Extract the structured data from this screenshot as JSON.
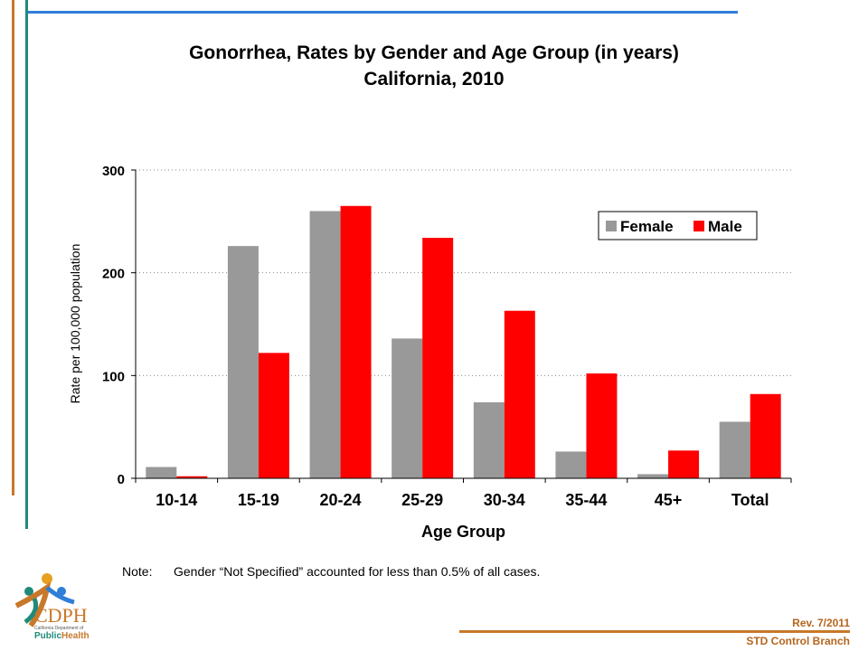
{
  "slide": {
    "title_line1": "Gonorrhea, Rates by Gender and Age Group (in years)",
    "title_line2": "California, 2010",
    "note_label": "Note:",
    "note_text": "Gender “Not Specified” accounted for less than 0.5% of all cases.",
    "rev": "Rev. 7/2011",
    "branch": "STD Control Branch",
    "logo": {
      "acronym": "CDPH",
      "line1": "California Department of",
      "public": "Public",
      "health": "Health"
    }
  },
  "colors": {
    "female": "#999999",
    "male": "#ff0000",
    "accent_orange": "#c8782a",
    "accent_teal": "#1f8a7a",
    "accent_blue": "#2f7ed8"
  },
  "chart_data": {
    "type": "bar",
    "title": "Gonorrhea, Rates by Gender and Age Group (in years) California, 2010",
    "xlabel": "Age Group",
    "ylabel": "Rate per 100,000 population",
    "ylim": [
      0,
      300
    ],
    "yticks": [
      "0",
      "100",
      "200",
      "300"
    ],
    "grid": true,
    "legend_position": "top-right",
    "categories": [
      "10-14",
      "15-19",
      "20-24",
      "25-29",
      "30-34",
      "35-44",
      "45+",
      "Total"
    ],
    "series": [
      {
        "name": "Female",
        "values": [
          11,
          226,
          260,
          136,
          74,
          26,
          4,
          55
        ]
      },
      {
        "name": "Male",
        "values": [
          2,
          122,
          265,
          234,
          163,
          102,
          27,
          82
        ]
      }
    ]
  }
}
